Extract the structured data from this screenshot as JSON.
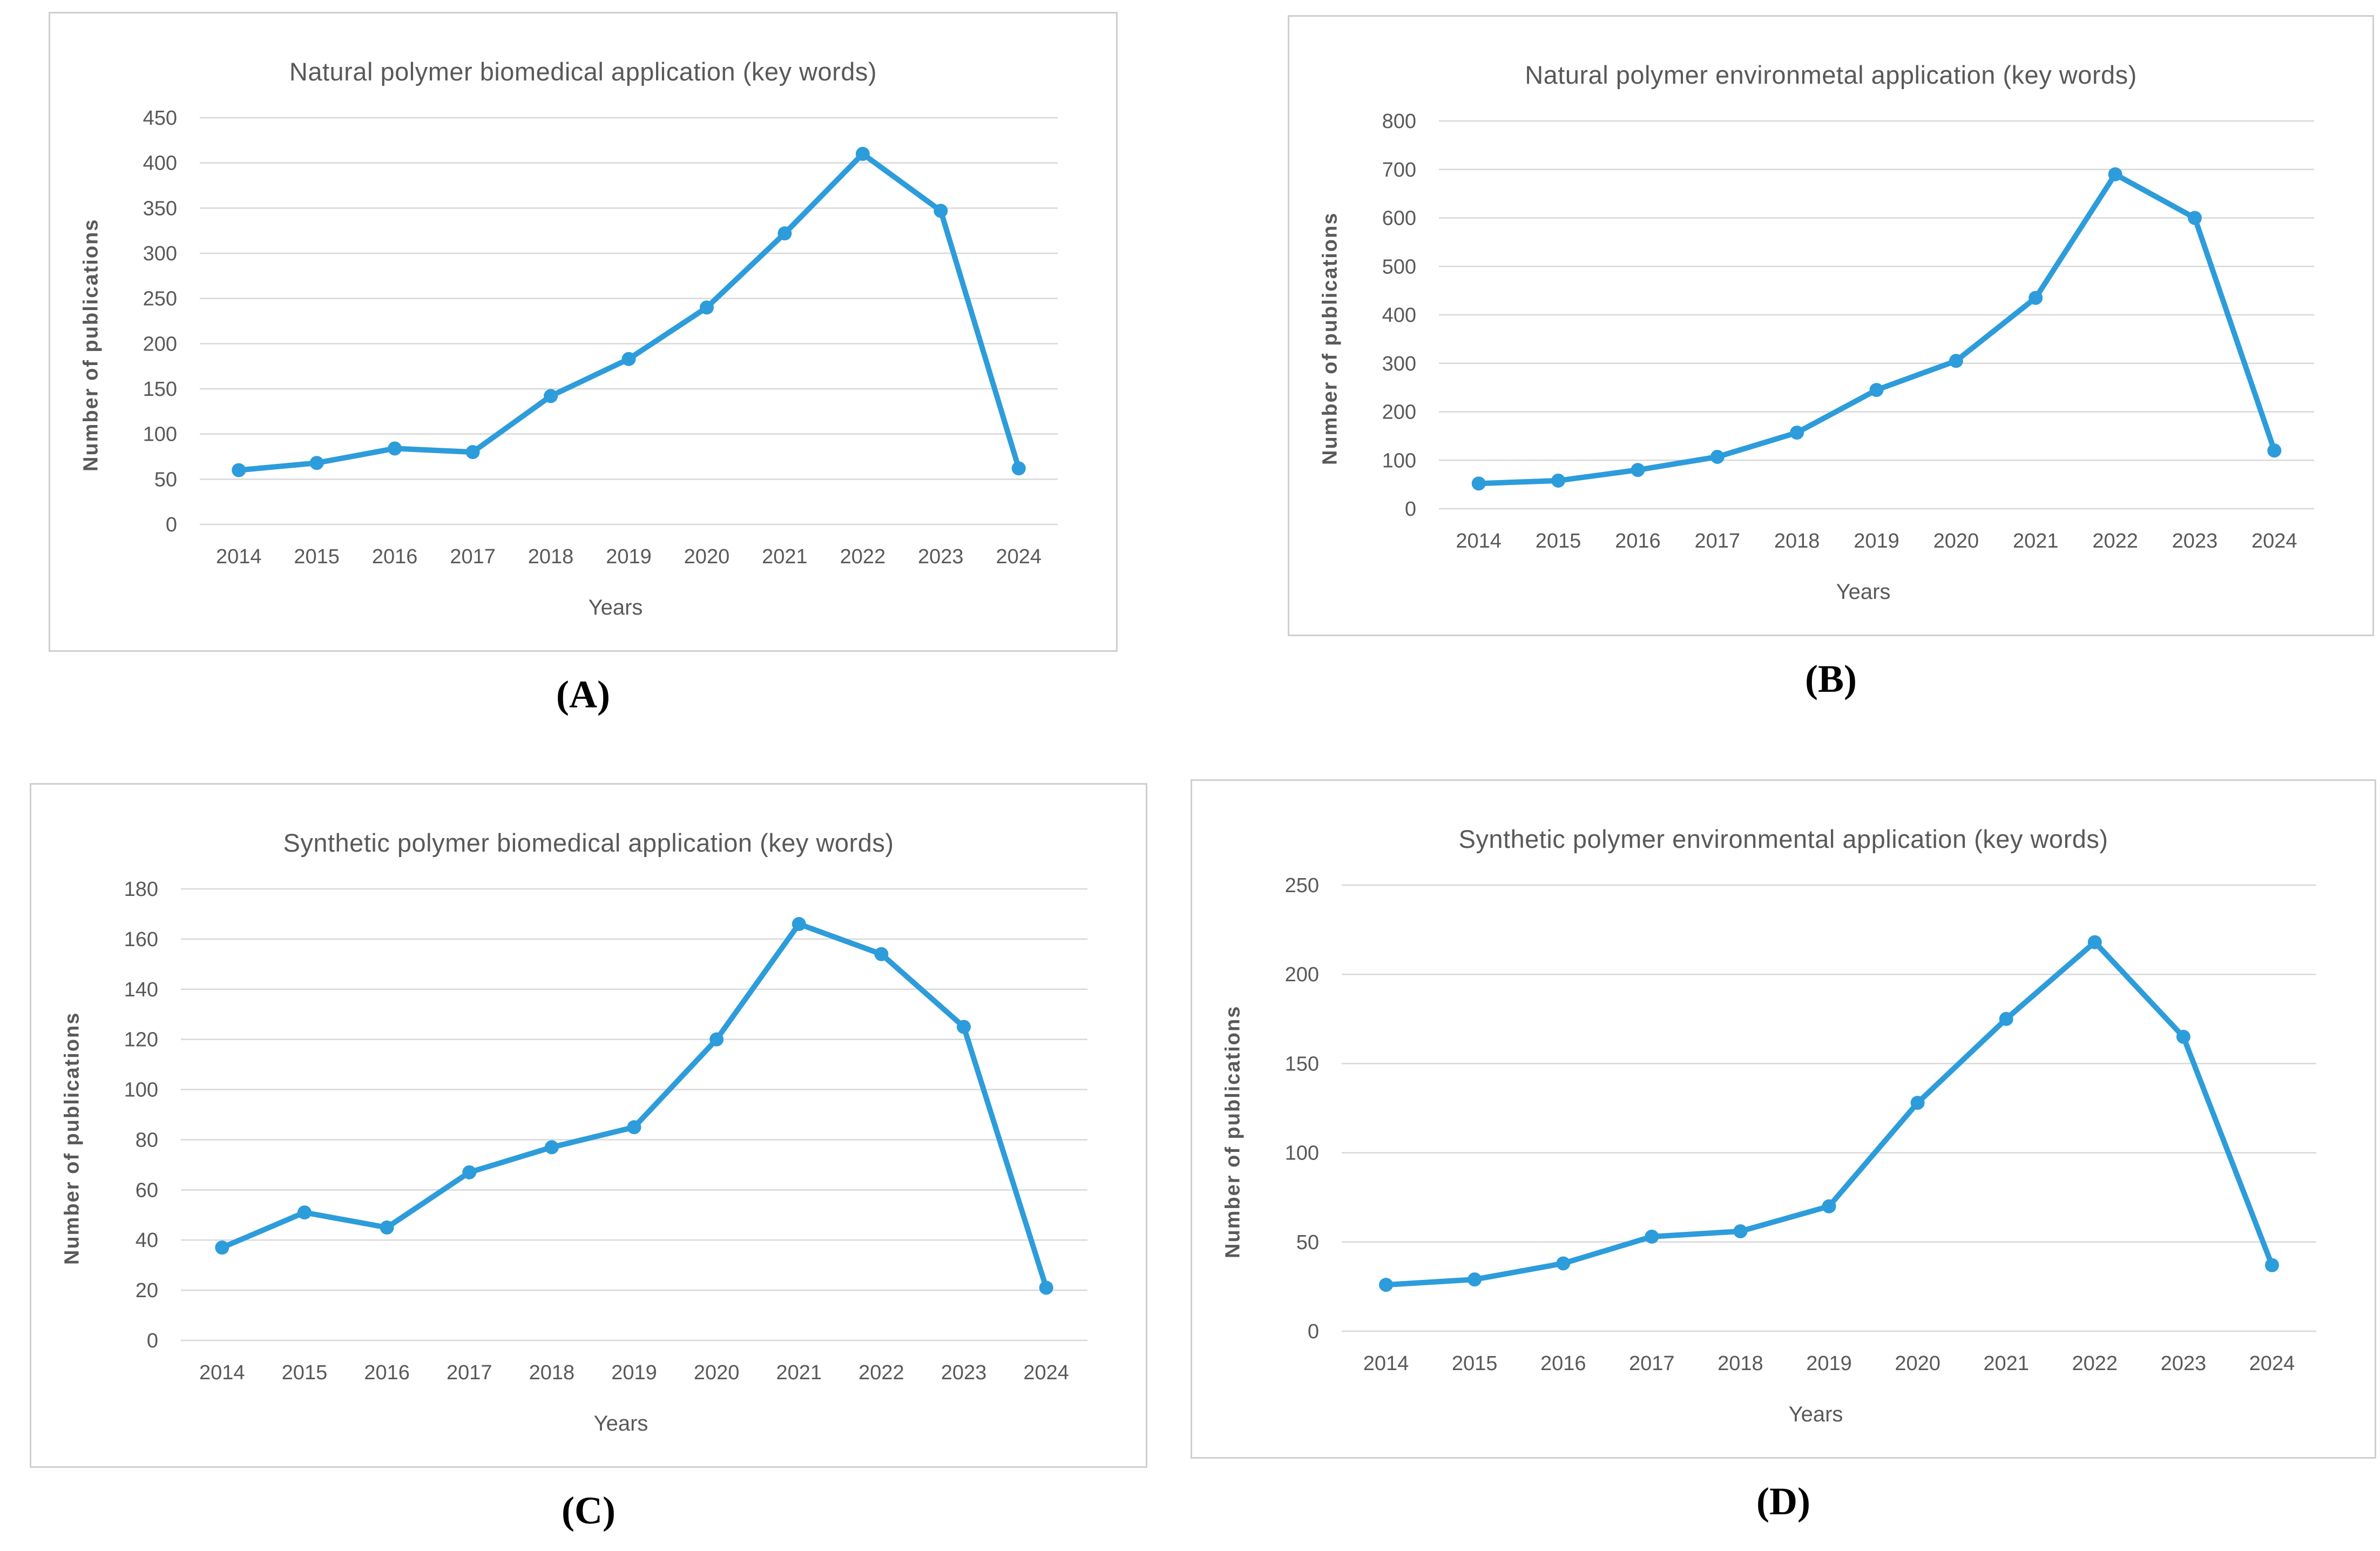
{
  "colors": {
    "line": "#2D9CDB",
    "marker": "#2D9CDB",
    "grid": "#d8d8d8",
    "axis_text": "#595959",
    "title_text": "#595959",
    "panel_border": "#cfcfcf",
    "caption_text": "#000000",
    "background": "#ffffff"
  },
  "chart_data": [
    {
      "panel_label": "(A)",
      "type": "line",
      "title": "Natural polymer biomedical application (key words)",
      "xlabel": "Years",
      "ylabel": "Number of publications",
      "categories": [
        "2014",
        "2015",
        "2016",
        "2017",
        "2018",
        "2019",
        "2020",
        "2021",
        "2022",
        "2023",
        "2024"
      ],
      "values": [
        60,
        68,
        84,
        80,
        142,
        183,
        240,
        322,
        410,
        347,
        62
      ],
      "ylim": [
        0,
        450
      ],
      "ytick_step": 50,
      "grid": true,
      "legend": "none"
    },
    {
      "panel_label": "(B)",
      "type": "line",
      "title": "Natural polymer environmetal application (key words)",
      "xlabel": "Years",
      "ylabel": "Number of publications",
      "categories": [
        "2014",
        "2015",
        "2016",
        "2017",
        "2018",
        "2019",
        "2020",
        "2021",
        "2022",
        "2023",
        "2024"
      ],
      "values": [
        52,
        58,
        80,
        107,
        157,
        245,
        305,
        435,
        690,
        600,
        120
      ],
      "ylim": [
        0,
        800
      ],
      "ytick_step": 100,
      "grid": true,
      "legend": "none"
    },
    {
      "panel_label": "(C)",
      "type": "line",
      "title": "Synthetic polymer biomedical application (key words)",
      "xlabel": "Years",
      "ylabel": "Number of publications",
      "categories": [
        "2014",
        "2015",
        "2016",
        "2017",
        "2018",
        "2019",
        "2020",
        "2021",
        "2022",
        "2023",
        "2024"
      ],
      "values": [
        37,
        51,
        45,
        67,
        77,
        85,
        120,
        166,
        154,
        125,
        21
      ],
      "ylim": [
        0,
        180
      ],
      "ytick_step": 20,
      "grid": true,
      "legend": "none"
    },
    {
      "panel_label": "(D)",
      "type": "line",
      "title": "Synthetic polymer environmental application (key words)",
      "xlabel": "Years",
      "ylabel": "Number of publications",
      "categories": [
        "2014",
        "2015",
        "2016",
        "2017",
        "2018",
        "2019",
        "2020",
        "2021",
        "2022",
        "2023",
        "2024"
      ],
      "values": [
        26,
        29,
        38,
        53,
        56,
        70,
        128,
        175,
        218,
        165,
        37
      ],
      "ylim": [
        0,
        250
      ],
      "ytick_step": 50,
      "grid": true,
      "legend": "none"
    }
  ]
}
